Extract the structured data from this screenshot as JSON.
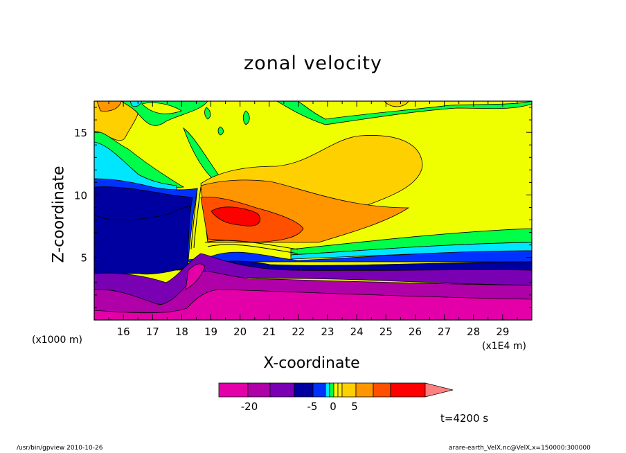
{
  "chart_data": {
    "type": "heatmap",
    "title": "zonal velocity",
    "xlabel": "X-coordinate",
    "ylabel": "Z-coordinate",
    "x_unit": "(x1E4 m)",
    "y_unit": "(x1000 m)",
    "x_ticks": [
      "16",
      "17",
      "18",
      "19",
      "20",
      "21",
      "22",
      "23",
      "24",
      "25",
      "26",
      "27",
      "28",
      "29"
    ],
    "y_ticks": [
      "5",
      "10",
      "15"
    ],
    "xlim": [
      15,
      30
    ],
    "ylim": [
      0,
      17.5
    ],
    "colorbar": {
      "tick_labels": [
        "-20",
        "-5",
        "0",
        "5"
      ],
      "tick_values": [
        -20,
        -5,
        0,
        5
      ],
      "level_colors": [
        "#e400a8",
        "#b000a8",
        "#7a00b4",
        "#0000a0",
        "#0032ff",
        "#00e6ff",
        "#00ff48",
        "#f0ff00",
        "#ffd000",
        "#ff9600",
        "#ff5000",
        "#ff0000"
      ],
      "extend_color": "#ff8080"
    },
    "time_label": "t=4200 s",
    "footer_left": "/usr/bin/gpview   2010-10-26",
    "footer_right": "arare-earth_VelX.nc@VelX,x=150000:300000"
  }
}
